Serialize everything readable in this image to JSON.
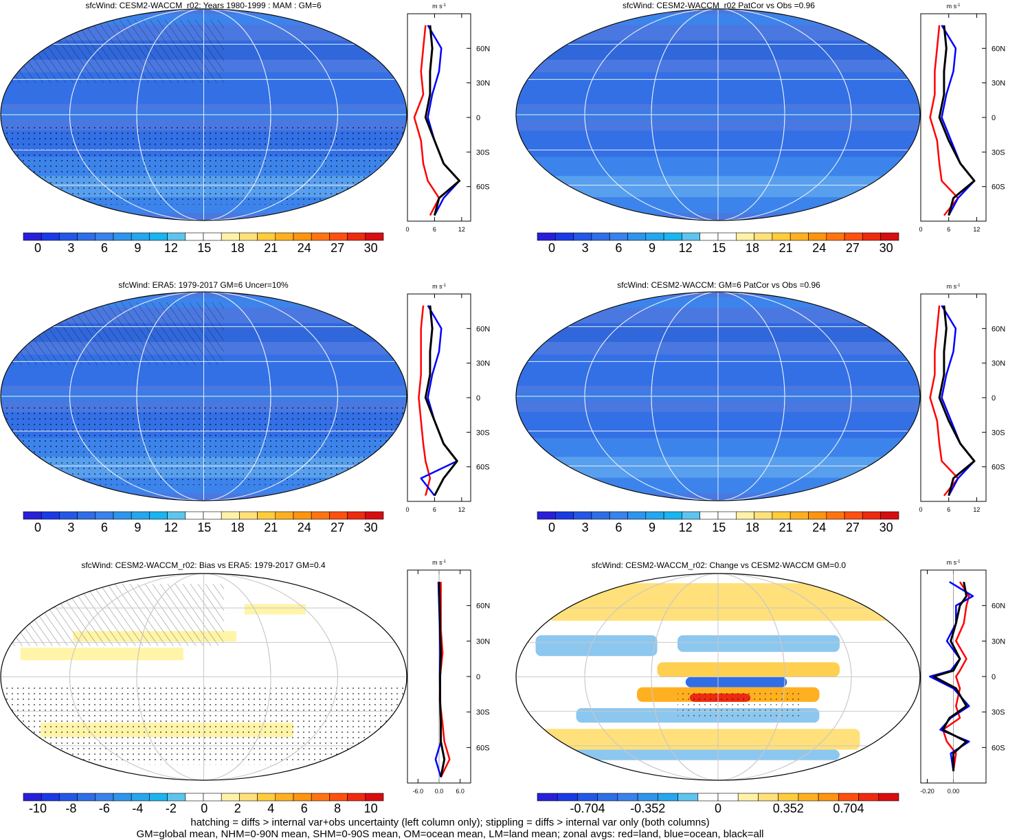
{
  "panels": [
    {
      "id": "p1",
      "title": "sfcWind: CESM2-WACCM_r02: Years 1980-1999 : MAM : GM=6",
      "kind": "abs"
    },
    {
      "id": "p2",
      "title": "sfcWind: CESM2-WACCM_r02 PatCor vs Obs =0.96",
      "kind": "abs"
    },
    {
      "id": "p3",
      "title": "sfcWind: ERA5: 1979-2017 GM=6 Uncer=10%",
      "kind": "abs"
    },
    {
      "id": "p4",
      "title": "sfcWind: CESM2-WACCM: GM=6 PatCor vs Obs =0.96",
      "kind": "abs"
    },
    {
      "id": "p5",
      "title": "sfcWind: CESM2-WACCM_r02: Bias vs ERA5: 1979-2017 GM=0.4",
      "kind": "bias"
    },
    {
      "id": "p6",
      "title": "sfcWind: CESM2-WACCM_r02: Change vs CESM2-WACCM GM=0.0",
      "kind": "change"
    }
  ],
  "colorbars": {
    "abs": {
      "labels": [
        "0",
        "3",
        "6",
        "9",
        "12",
        "15",
        "18",
        "21",
        "24",
        "27",
        "30"
      ]
    },
    "bias": {
      "labels": [
        "-10",
        "-8",
        "-6",
        "-4",
        "-2",
        "0",
        "2",
        "4",
        "6",
        "8",
        "10"
      ]
    },
    "change": {
      "labels": [
        "-0.704",
        "-0.352",
        "0",
        "0.352",
        "0.704"
      ]
    }
  },
  "profile": {
    "unit": "m s",
    "unit_exp": "-1",
    "lat_labels": [
      "60N",
      "30N",
      "0",
      "30S",
      "60S"
    ],
    "abs_ticks": [
      "0",
      "6",
      "12"
    ],
    "bias_ticks": [
      "-6.0",
      "0.0",
      "6.0"
    ],
    "change_ticks": [
      "-0.20",
      "0.00"
    ]
  },
  "colors": {
    "land": "#ff0000",
    "ocean": "#0000ff",
    "all": "#000000",
    "map_base": "#4a78e0"
  },
  "footer": {
    "line1": "hatching = diffs > internal var+obs uncertainty (left column only); stippling = diffs > internal var only (both columns)",
    "line2": "GM=global mean, NHM=0-90N mean, SHM=0-90S mean, OM=ocean mean, LM=land mean; zonal avgs: red=land, blue=ocean, black=all"
  },
  "chart_data": [
    {
      "type": "heatmap",
      "title": "sfcWind: CESM2-WACCM_r02: Years 1980-1999 : MAM : GM=6",
      "colorbar": [
        0,
        30
      ],
      "zonal_profile": {
        "xlim": [
          0,
          14
        ],
        "ylim": [
          -90,
          90
        ],
        "lat": [
          80,
          60,
          40,
          20,
          0,
          -20,
          -40,
          -55,
          -70,
          -85
        ],
        "land": [
          4,
          3.5,
          3,
          3.5,
          1.5,
          3,
          3.5,
          4.5,
          7,
          5
        ],
        "ocean": [
          4.5,
          7.5,
          7,
          5.5,
          4.5,
          6,
          8,
          11.5,
          8,
          6
        ],
        "all": [
          5,
          5.5,
          5,
          5,
          4,
          6,
          8,
          11.5,
          7,
          6
        ]
      }
    },
    {
      "type": "heatmap",
      "title": "sfcWind: CESM2-WACCM_r02 PatCor vs Obs =0.96",
      "colorbar": [
        0,
        30
      ],
      "zonal_profile": {
        "xlim": [
          0,
          14
        ],
        "ylim": [
          -90,
          90
        ],
        "lat": [
          80,
          60,
          40,
          20,
          0,
          -20,
          -40,
          -55,
          -70,
          -85
        ],
        "land": [
          4,
          3.5,
          3,
          3,
          2,
          3.5,
          4,
          4.5,
          8,
          5
        ],
        "ocean": [
          4.5,
          7.5,
          7,
          5.5,
          4.5,
          6.5,
          8.5,
          11.5,
          8,
          6
        ],
        "all": [
          5,
          5.5,
          5,
          5,
          4,
          6,
          8.5,
          11.5,
          7,
          6
        ]
      }
    },
    {
      "type": "heatmap",
      "title": "sfcWind: ERA5: 1979-2017 GM=6 Uncer=10%",
      "colorbar": [
        0,
        30
      ],
      "zonal_profile": {
        "xlim": [
          0,
          14
        ],
        "ylim": [
          -90,
          90
        ],
        "lat": [
          80,
          60,
          40,
          20,
          0,
          -20,
          -40,
          -55,
          -70,
          -85
        ],
        "land": [
          3.5,
          3,
          3,
          3,
          2.5,
          3,
          3.5,
          4,
          5,
          4
        ],
        "ocean": [
          4.5,
          7.5,
          7,
          5.5,
          4.5,
          6,
          8,
          11,
          3,
          6
        ],
        "all": [
          5,
          5.5,
          5,
          5,
          4,
          6,
          8,
          11,
          8,
          6
        ]
      }
    },
    {
      "type": "heatmap",
      "title": "sfcWind: CESM2-WACCM: GM=6 PatCor vs Obs =0.96",
      "colorbar": [
        0,
        30
      ],
      "zonal_profile": {
        "xlim": [
          0,
          14
        ],
        "ylim": [
          -90,
          90
        ],
        "lat": [
          80,
          60,
          40,
          20,
          0,
          -20,
          -40,
          -55,
          -70,
          -85
        ],
        "land": [
          4,
          3.5,
          3,
          3,
          2,
          3.5,
          4,
          4.5,
          8,
          5
        ],
        "ocean": [
          4.5,
          7.5,
          7,
          5.5,
          4.5,
          6.5,
          8.5,
          11.5,
          8,
          6
        ],
        "all": [
          5,
          5.5,
          5,
          5,
          4,
          6,
          8.5,
          11.5,
          7,
          6
        ]
      }
    },
    {
      "type": "heatmap",
      "title": "sfcWind: CESM2-WACCM_r02: Bias vs ERA5: 1979-2017 GM=0.4",
      "colorbar": [
        -10,
        10
      ],
      "zonal_profile": {
        "xlim": [
          -9,
          9
        ],
        "ylim": [
          -90,
          90
        ],
        "lat": [
          80,
          60,
          40,
          20,
          0,
          -20,
          -40,
          -55,
          -70,
          -85
        ],
        "land": [
          0.5,
          0.5,
          0.5,
          1,
          0.3,
          0.2,
          1,
          1.5,
          3,
          0.5
        ],
        "ocean": [
          -0.2,
          0,
          0.2,
          0.3,
          0.2,
          0.3,
          0.5,
          0.5,
          -1,
          0.5
        ],
        "all": [
          0,
          0.2,
          0.3,
          0.5,
          0.3,
          0.3,
          0.5,
          0.5,
          1.5,
          0.5
        ]
      }
    },
    {
      "type": "heatmap",
      "title": "sfcWind: CESM2-WACCM_r02: Change vs CESM2-WACCM GM=0.0",
      "colorbar": [
        -0.88,
        0.88
      ],
      "zonal_profile": {
        "xlim": [
          -0.25,
          0.25
        ],
        "ylim": [
          -90,
          90
        ],
        "lat": [
          80,
          68,
          60,
          45,
          30,
          15,
          5,
          0,
          -10,
          -25,
          -35,
          -45,
          -55,
          -65,
          -80
        ],
        "land": [
          0.05,
          0.12,
          0.1,
          0.08,
          0.02,
          0.1,
          0.05,
          0.02,
          0.05,
          0.02,
          0.05,
          -0.08,
          -0.05,
          0.02,
          0.0
        ],
        "ocean": [
          -0.03,
          0.15,
          0.02,
          0.02,
          -0.05,
          0.05,
          -0.02,
          -0.18,
          0.0,
          0.12,
          -0.02,
          -0.1,
          0.12,
          -0.02,
          0.0
        ],
        "all": [
          0.08,
          0.1,
          0.05,
          0.02,
          -0.02,
          0.05,
          0.0,
          -0.15,
          0.02,
          0.1,
          -0.03,
          -0.08,
          0.1,
          0.0,
          0.0
        ]
      }
    }
  ]
}
